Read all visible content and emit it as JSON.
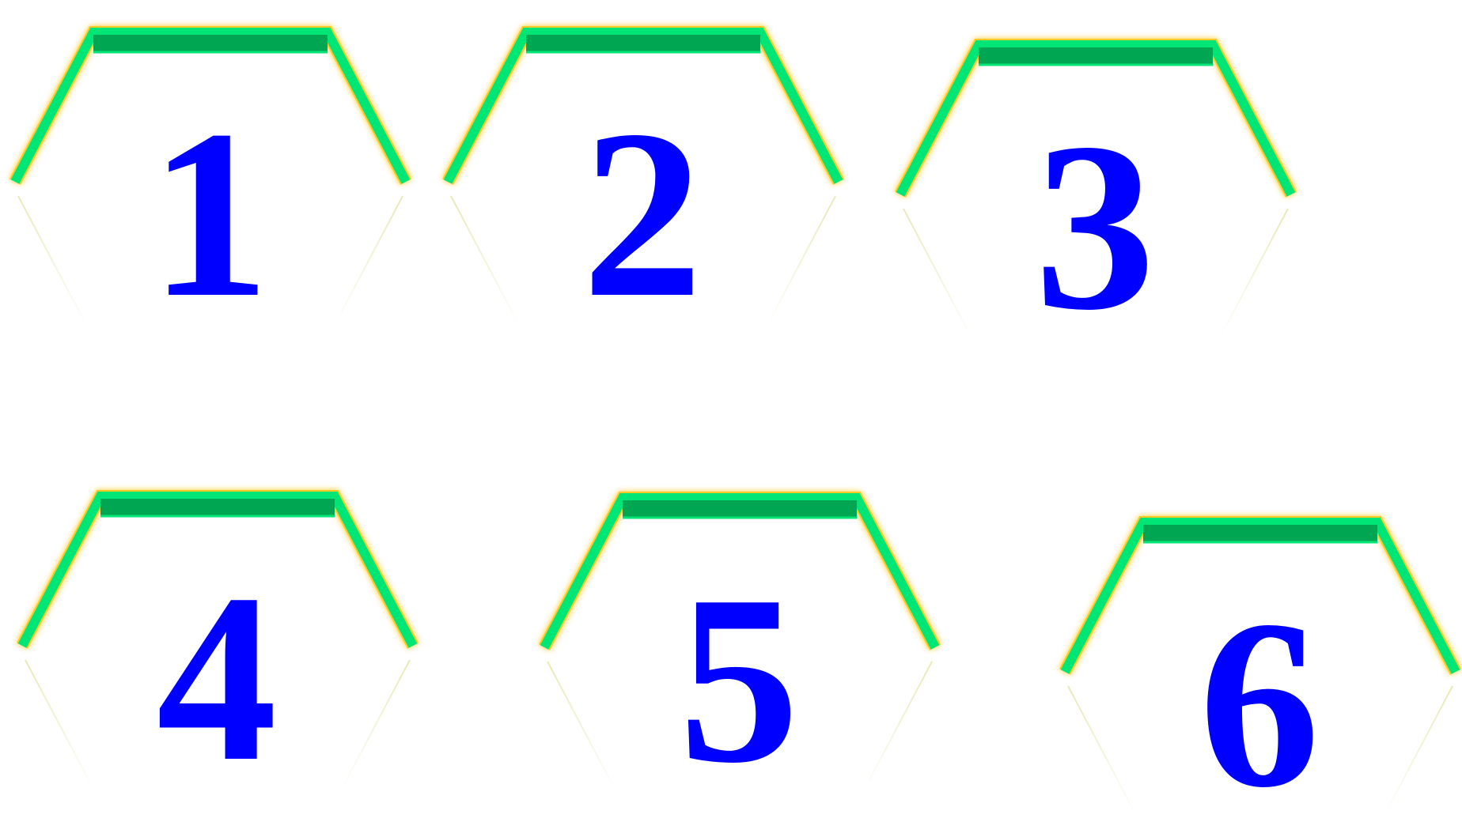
{
  "badges": [
    {
      "label": "1"
    },
    {
      "label": "2"
    },
    {
      "label": "3"
    },
    {
      "label": "4"
    },
    {
      "label": "5"
    },
    {
      "label": "6"
    }
  ],
  "colors": {
    "numeral": "#0000ff",
    "top_band": "#00a651",
    "side_band": "#00e676",
    "glow": "#ffc000",
    "background": "#ffffff"
  }
}
